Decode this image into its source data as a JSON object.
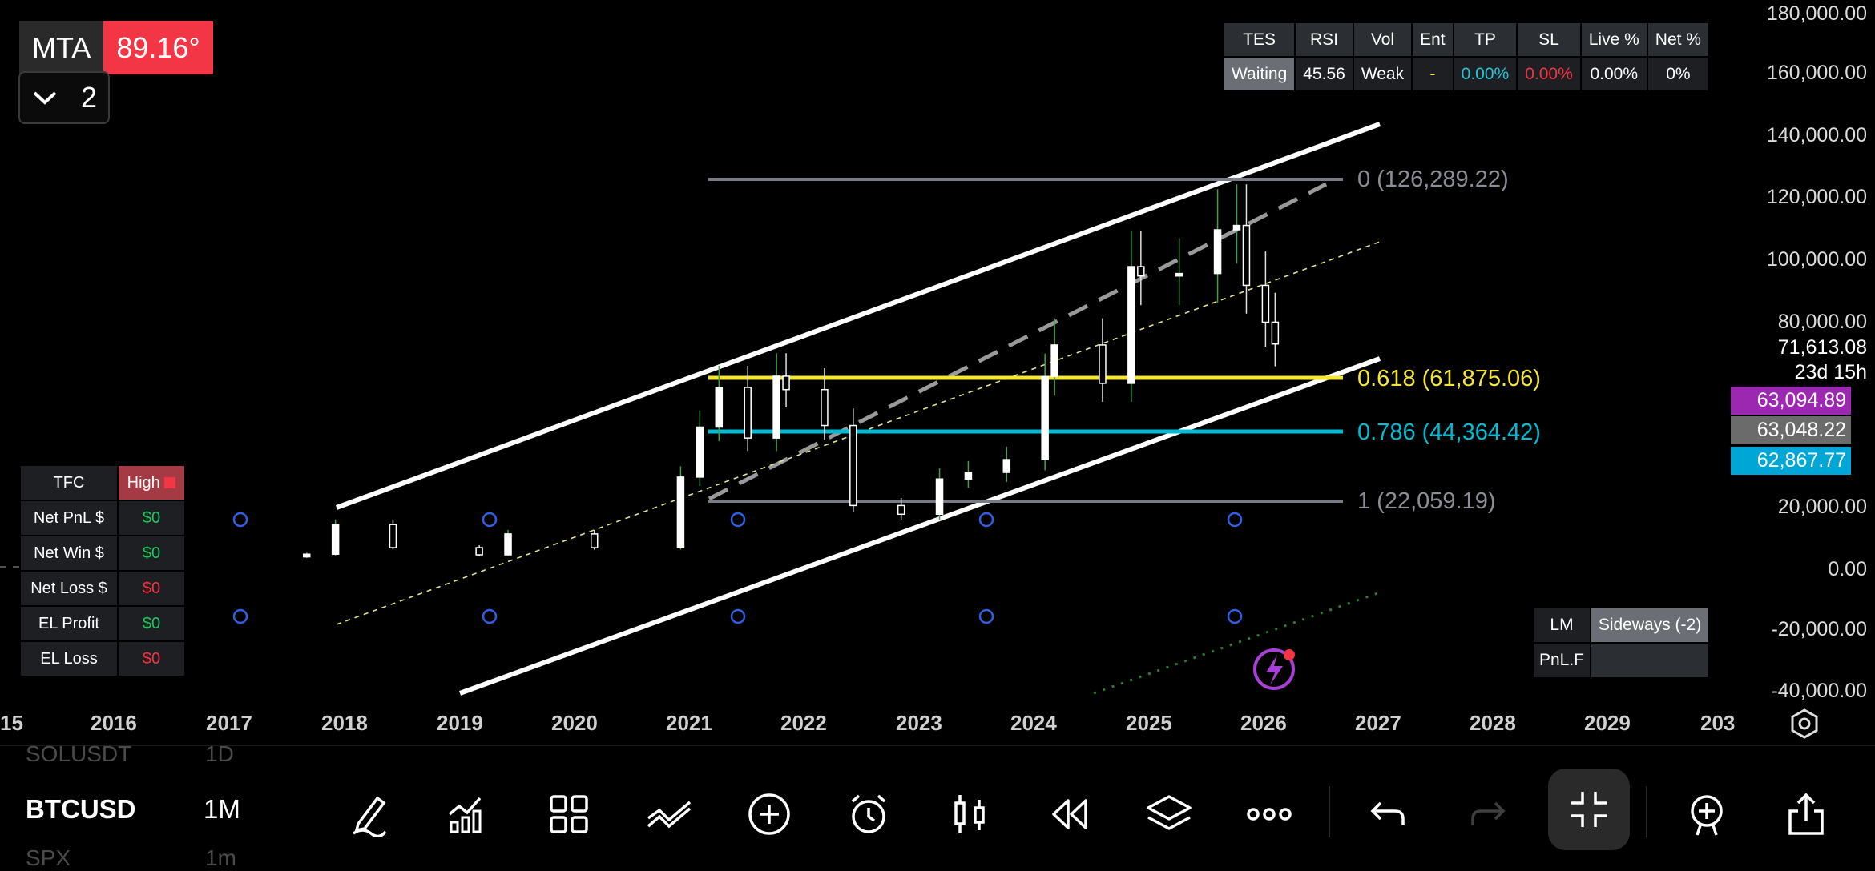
{
  "badge": {
    "key": "MTA",
    "value": "89.16°"
  },
  "layer": {
    "count": "2"
  },
  "tes_table": {
    "headers": [
      "TES",
      "RSI",
      "Vol",
      "Ent",
      "TP",
      "SL",
      "Live %",
      "Net %"
    ],
    "values": [
      "Waiting",
      "45.56",
      "Weak",
      "-",
      "0.00%",
      "0.00%",
      "0.00%",
      "0%"
    ]
  },
  "tfc_table": {
    "header": {
      "label": "TFC",
      "value": "High"
    },
    "rows": [
      {
        "label": "Net PnL $",
        "value": "$0"
      },
      {
        "label": "Net Win $",
        "value": "$0"
      },
      {
        "label": "Net Loss $",
        "value": "$0"
      },
      {
        "label": "EL Profit",
        "value": "$0"
      },
      {
        "label": "EL Loss",
        "value": "$0"
      }
    ]
  },
  "lm_table": {
    "lm": "LM",
    "lm_value": "Sideways (-2)",
    "pnl": "PnL.F",
    "pnl_value": ""
  },
  "fib_labels": {
    "f0": "0 (126,289.22)",
    "f618": "0.618 (61,875.06)",
    "f786": "0.786 (44,364.42)",
    "f1": "1 (22,059.19)"
  },
  "price_axis": {
    "ticks": [
      "180,000.00",
      "160,000.00",
      "140,000.00",
      "120,000.00",
      "100,000.00",
      "80,000.00",
      "20,000.00",
      "0.00",
      "-20,000.00",
      "-40,000.00"
    ],
    "last_price": "71,613.08",
    "countdown": "23d 15h",
    "badges": [
      {
        "value": "63,094.89",
        "color": "#9c27b0"
      },
      {
        "value": "63,048.22",
        "color": "#6b6b6b"
      },
      {
        "value": "62,867.77",
        "color": "#00a6d6"
      }
    ]
  },
  "time_axis": [
    "15",
    "2016",
    "2017",
    "2018",
    "2019",
    "2020",
    "2021",
    "2022",
    "2023",
    "2024",
    "2025",
    "2026",
    "2027",
    "2028",
    "2029",
    "203"
  ],
  "toolbar": {
    "symbol": "BTCUSD",
    "interval": "1M",
    "ghost_above_symbol": "SOLUSDT",
    "ghost_above_interval": "1D",
    "ghost_below_symbol": "SPX",
    "ghost_below_interval": "1m"
  },
  "chart_data": {
    "type": "candlestick",
    "x": [
      "2017-09",
      "2017-12",
      "2018-06",
      "2019-03",
      "2019-06",
      "2020-03",
      "2020-12",
      "2021-02",
      "2021-04",
      "2021-07",
      "2021-10",
      "2021-11",
      "2022-03",
      "2022-06",
      "2022-11",
      "2023-03",
      "2023-06",
      "2023-10",
      "2024-02",
      "2024-03",
      "2024-08",
      "2024-11",
      "2024-12",
      "2025-04",
      "2025-08",
      "2025-10",
      "2025-11",
      "2026-01",
      "2026-02"
    ],
    "close": [
      4300,
      13800,
      6400,
      4100,
      10800,
      6400,
      29000,
      45000,
      57700,
      41500,
      61300,
      57000,
      45500,
      19900,
      17100,
      28400,
      30500,
      34600,
      61200,
      71300,
      59000,
      96400,
      93400,
      94200,
      108200,
      109600,
      90400,
      78600,
      71613
    ],
    "ylim": [
      -40000,
      180000
    ],
    "fib_levels": [
      126289.22,
      61875.06,
      44364.42,
      22059.19
    ],
    "colors": {
      "up": "#ffffff",
      "down": "#ffffff",
      "fib0": "#787b86",
      "fib618": "#f5e536",
      "fib786": "#00bcd4",
      "fib1": "#787b86"
    }
  }
}
